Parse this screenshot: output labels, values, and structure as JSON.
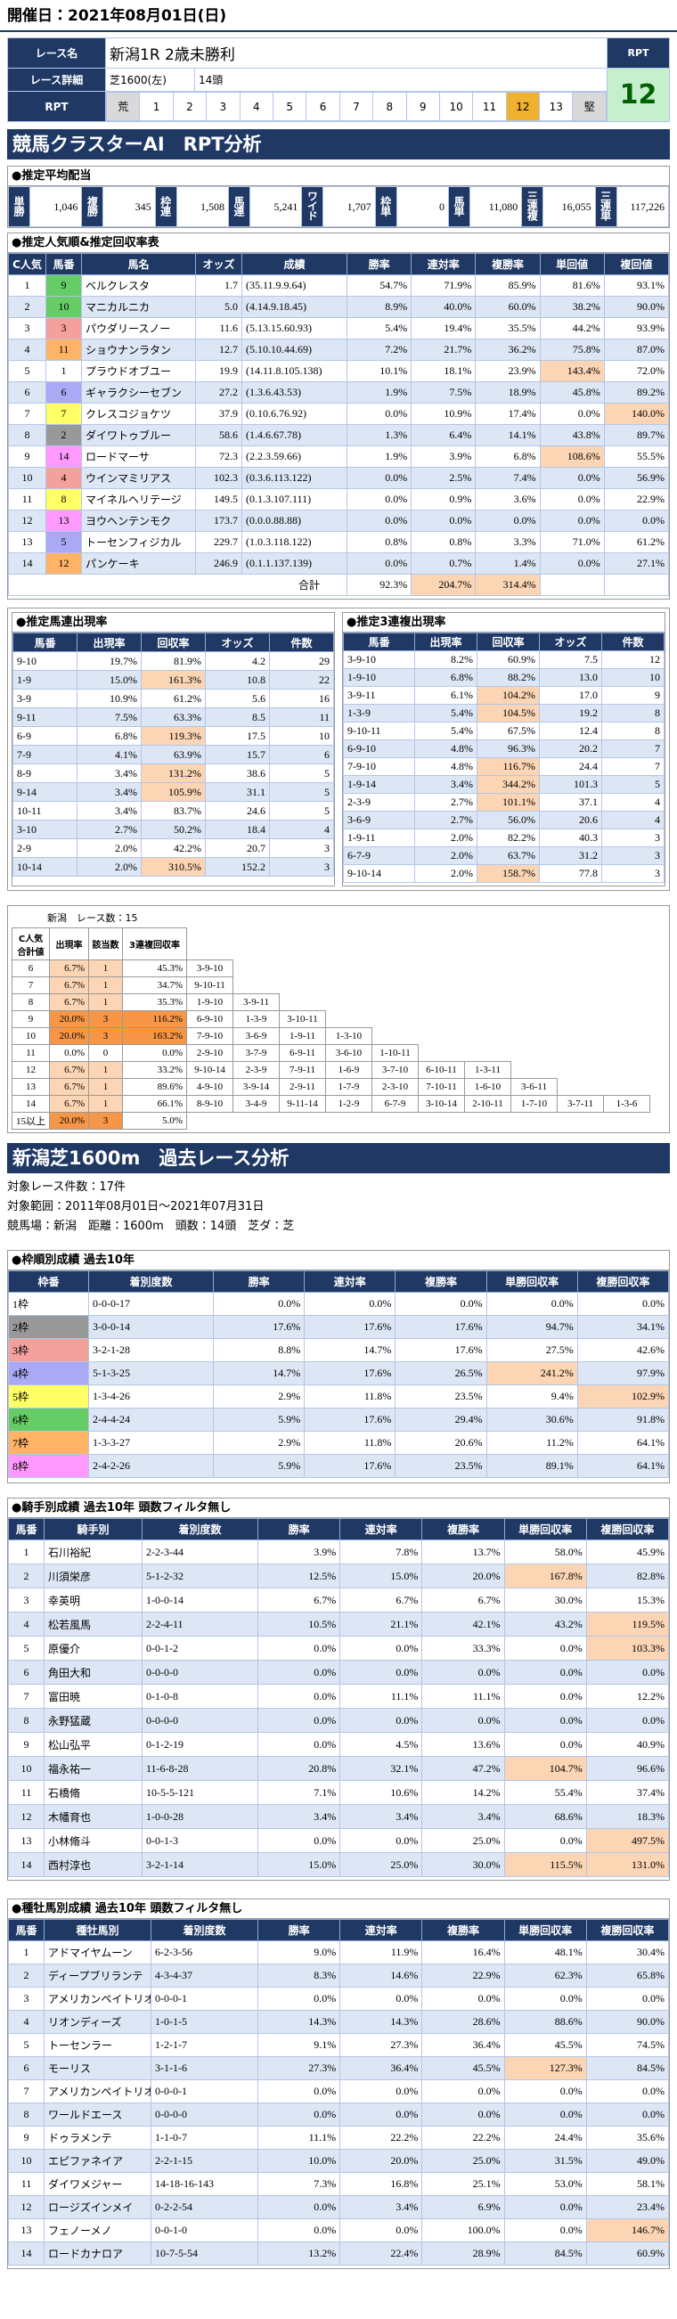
{
  "header": {
    "date": "開催日：2021年08月01日(日)"
  },
  "race": {
    "name_label": "レース名",
    "name": "新潟1R 2歳未勝利",
    "detail_label": "レース詳細",
    "course": "芝1600(左)",
    "runners": "14頭",
    "rpt_label": "RPT",
    "rpt_box_label": "RPT",
    "rpt_value": "12",
    "rpt_scale": [
      "荒",
      "1",
      "2",
      "3",
      "4",
      "5",
      "6",
      "7",
      "8",
      "9",
      "10",
      "11",
      "12",
      "13",
      "堅"
    ]
  },
  "analysis_title": "競馬クラスターAI　RPT分析",
  "payout": {
    "title": "●推定平均配当",
    "items": [
      {
        "label": "単勝",
        "value": "1,046"
      },
      {
        "label": "複勝",
        "value": "345"
      },
      {
        "label": "枠連",
        "value": "1,508"
      },
      {
        "label": "馬連",
        "value": "5,241"
      },
      {
        "label": "ワイド",
        "value": "1,707"
      },
      {
        "label": "枠単",
        "value": "0"
      },
      {
        "label": "馬単",
        "value": "11,080"
      },
      {
        "label": "三連複",
        "value": "16,055"
      },
      {
        "label": "三連単",
        "value": "117,226"
      }
    ]
  },
  "popularity": {
    "title": "●推定人気順&推定回収率表",
    "columns": [
      "C人気",
      "馬番",
      "馬名",
      "オッズ",
      "成績",
      "勝率",
      "連対率",
      "複勝率",
      "単回値",
      "複回値"
    ],
    "rows": [
      {
        "cells": [
          "1",
          "9",
          "ベルクレスタ",
          "1.7",
          "(35.11.9.9.64)",
          "54.7%",
          "71.9%",
          "85.9%",
          "81.6%",
          "93.1%"
        ],
        "color": "#66cc66"
      },
      {
        "cells": [
          "2",
          "10",
          "マニカルニカ",
          "5.0",
          "(4.14.9.18.45)",
          "8.9%",
          "40.0%",
          "60.0%",
          "38.2%",
          "90.0%"
        ],
        "color": "#66cc66"
      },
      {
        "cells": [
          "3",
          "3",
          "パウダリースノー",
          "11.6",
          "(5.13.15.60.93)",
          "5.4%",
          "19.4%",
          "35.5%",
          "44.2%",
          "93.9%"
        ],
        "color": "#f4a09c"
      },
      {
        "cells": [
          "4",
          "11",
          "ショウナンラタン",
          "12.7",
          "(5.10.10.44.69)",
          "7.2%",
          "21.7%",
          "36.2%",
          "75.8%",
          "87.0%"
        ],
        "color": "#ffb366"
      },
      {
        "cells": [
          "5",
          "1",
          "プラウドオブユー",
          "19.9",
          "(14.11.8.105.138)",
          "10.1%",
          "18.1%",
          "23.9%",
          "143.4%",
          "72.0%"
        ],
        "color": "#ffffff"
      },
      {
        "cells": [
          "6",
          "6",
          "ギャラクシーセブン",
          "27.2",
          "(1.3.6.43.53)",
          "1.9%",
          "7.5%",
          "18.9%",
          "45.8%",
          "89.2%"
        ],
        "color": "#a9a9f5"
      },
      {
        "cells": [
          "7",
          "7",
          "クレスコジョケツ",
          "37.9",
          "(0.10.6.76.92)",
          "0.0%",
          "10.9%",
          "17.4%",
          "0.0%",
          "140.0%"
        ],
        "color": "#ffff66"
      },
      {
        "cells": [
          "8",
          "2",
          "ダイワトゥブルー",
          "58.6",
          "(1.4.6.67.78)",
          "1.3%",
          "6.4%",
          "14.1%",
          "43.8%",
          "89.7%"
        ],
        "color": "#999999"
      },
      {
        "cells": [
          "9",
          "14",
          "ロードマーサ",
          "72.3",
          "(2.2.3.59.66)",
          "1.9%",
          "3.9%",
          "6.8%",
          "108.6%",
          "55.5%"
        ],
        "color": "#ff99ff"
      },
      {
        "cells": [
          "10",
          "4",
          "ウインマミリアス",
          "102.3",
          "(0.3.6.113.122)",
          "0.0%",
          "2.5%",
          "7.4%",
          "0.0%",
          "56.9%"
        ],
        "color": "#f4a09c"
      },
      {
        "cells": [
          "11",
          "8",
          "マイネルヘリテージ",
          "149.5",
          "(0.1.3.107.111)",
          "0.0%",
          "0.9%",
          "3.6%",
          "0.0%",
          "22.9%"
        ],
        "color": "#ffff66"
      },
      {
        "cells": [
          "12",
          "13",
          "ヨウヘンテンモク",
          "173.7",
          "(0.0.0.88.88)",
          "0.0%",
          "0.0%",
          "0.0%",
          "0.0%",
          "0.0%"
        ],
        "color": "#ff99ff"
      },
      {
        "cells": [
          "13",
          "5",
          "トーセンフィジカル",
          "229.7",
          "(1.0.3.118.122)",
          "0.8%",
          "0.8%",
          "3.3%",
          "71.0%",
          "61.2%"
        ],
        "color": "#a9a9f5"
      },
      {
        "cells": [
          "14",
          "12",
          "パンケーキ",
          "246.9",
          "(0.1.1.137.139)",
          "0.0%",
          "0.7%",
          "1.4%",
          "0.0%",
          "27.1%"
        ],
        "color": "#ffb366"
      }
    ],
    "total": {
      "label": "合計",
      "values": [
        "92.3%",
        "204.7%",
        "314.4%"
      ]
    }
  },
  "umaren": {
    "title": "●推定馬連出現率",
    "columns": [
      "馬番",
      "出現率",
      "回収率",
      "オッズ",
      "件数"
    ],
    "rows": [
      [
        "9-10",
        "19.7%",
        "81.9%",
        "4.2",
        "29"
      ],
      [
        "1-9",
        "15.0%",
        "161.3%",
        "10.8",
        "22"
      ],
      [
        "3-9",
        "10.9%",
        "61.2%",
        "5.6",
        "16"
      ],
      [
        "9-11",
        "7.5%",
        "63.3%",
        "8.5",
        "11"
      ],
      [
        "6-9",
        "6.8%",
        "119.3%",
        "17.5",
        "10"
      ],
      [
        "7-9",
        "4.1%",
        "63.9%",
        "15.7",
        "6"
      ],
      [
        "8-9",
        "3.4%",
        "131.2%",
        "38.6",
        "5"
      ],
      [
        "9-14",
        "3.4%",
        "105.9%",
        "31.1",
        "5"
      ],
      [
        "10-11",
        "3.4%",
        "83.7%",
        "24.6",
        "5"
      ],
      [
        "3-10",
        "2.7%",
        "50.2%",
        "18.4",
        "4"
      ],
      [
        "2-9",
        "2.0%",
        "42.2%",
        "20.7",
        "3"
      ],
      [
        "10-14",
        "2.0%",
        "310.5%",
        "152.2",
        "3"
      ]
    ]
  },
  "sanrenpuku": {
    "title": "●推定3連複出現率",
    "columns": [
      "馬番",
      "出現率",
      "回収率",
      "オッズ",
      "件数"
    ],
    "rows": [
      [
        "3-9-10",
        "8.2%",
        "60.9%",
        "7.5",
        "12"
      ],
      [
        "1-9-10",
        "6.8%",
        "88.2%",
        "13.0",
        "10"
      ],
      [
        "3-9-11",
        "6.1%",
        "104.2%",
        "17.0",
        "9"
      ],
      [
        "1-3-9",
        "5.4%",
        "104.5%",
        "19.2",
        "8"
      ],
      [
        "9-10-11",
        "5.4%",
        "67.5%",
        "12.4",
        "8"
      ],
      [
        "6-9-10",
        "4.8%",
        "96.3%",
        "20.2",
        "7"
      ],
      [
        "7-9-10",
        "4.8%",
        "116.7%",
        "24.4",
        "7"
      ],
      [
        "1-9-14",
        "3.4%",
        "344.2%",
        "101.3",
        "5"
      ],
      [
        "2-3-9",
        "2.7%",
        "101.1%",
        "37.1",
        "4"
      ],
      [
        "3-6-9",
        "2.7%",
        "56.0%",
        "20.6",
        "4"
      ],
      [
        "1-9-11",
        "2.0%",
        "82.2%",
        "40.3",
        "3"
      ],
      [
        "6-7-9",
        "2.0%",
        "63.7%",
        "31.2",
        "3"
      ],
      [
        "9-10-14",
        "2.0%",
        "158.7%",
        "77.8",
        "3"
      ]
    ]
  },
  "sum_table": {
    "caption": "新潟　レース数：15",
    "columns": [
      "C人気合計値",
      "出現率",
      "該当数",
      "3連複回収率"
    ],
    "rows": [
      {
        "cells": [
          "6",
          "6.7%",
          "1",
          "45.3%"
        ],
        "combos": [
          "3-9-10"
        ]
      },
      {
        "cells": [
          "7",
          "6.7%",
          "1",
          "34.7%"
        ],
        "combos": [
          "9-10-11"
        ]
      },
      {
        "cells": [
          "8",
          "6.7%",
          "1",
          "35.3%"
        ],
        "combos": [
          "1-9-10",
          "3-9-11"
        ]
      },
      {
        "cells": [
          "9",
          "20.0%",
          "3",
          "116.2%"
        ],
        "combos": [
          "6-9-10",
          "1-3-9",
          "3-10-11"
        ]
      },
      {
        "cells": [
          "10",
          "20.0%",
          "3",
          "163.2%"
        ],
        "combos": [
          "7-9-10",
          "3-6-9",
          "1-9-11",
          "1-3-10"
        ]
      },
      {
        "cells": [
          "11",
          "0.0%",
          "0",
          "0.0%"
        ],
        "combos": [
          "2-9-10",
          "3-7-9",
          "6-9-11",
          "3-6-10",
          "1-10-11"
        ]
      },
      {
        "cells": [
          "12",
          "6.7%",
          "1",
          "33.2%"
        ],
        "combos": [
          "9-10-14",
          "2-3-9",
          "7-9-11",
          "1-6-9",
          "3-7-10",
          "6-10-11",
          "1-3-11"
        ]
      },
      {
        "cells": [
          "13",
          "6.7%",
          "1",
          "89.6%"
        ],
        "combos": [
          "4-9-10",
          "3-9-14",
          "2-9-11",
          "1-7-9",
          "2-3-10",
          "7-10-11",
          "1-6-10",
          "3-6-11"
        ]
      },
      {
        "cells": [
          "14",
          "6.7%",
          "1",
          "66.1%"
        ],
        "combos": [
          "8-9-10",
          "3-4-9",
          "9-11-14",
          "1-2-9",
          "6-7-9",
          "3-10-14",
          "2-10-11",
          "1-7-10",
          "3-7-11",
          "1-3-6"
        ]
      },
      {
        "cells": [
          "15以上",
          "20.0%",
          "3",
          "5.0%"
        ],
        "combos": []
      }
    ]
  },
  "past": {
    "title": "新潟芝1600m　過去レース分析",
    "info": [
      "対象レース件数：17件",
      "対象範囲：2011年08月01日～2021年07月31日",
      "競馬場：新潟　距離：1600m　頭数：14頭　芝ダ：芝"
    ]
  },
  "waku": {
    "title": "●枠順別成績 過去10年",
    "columns": [
      "枠番",
      "着別度数",
      "勝率",
      "連対率",
      "複勝率",
      "単勝回収率",
      "複勝回収率"
    ],
    "rows": [
      {
        "cells": [
          "1枠",
          "0-0-0-17",
          "0.0%",
          "0.0%",
          "0.0%",
          "0.0%",
          "0.0%"
        ],
        "color": "#ffffff"
      },
      {
        "cells": [
          "2枠",
          "3-0-0-14",
          "17.6%",
          "17.6%",
          "17.6%",
          "94.7%",
          "34.1%"
        ],
        "color": "#999999"
      },
      {
        "cells": [
          "3枠",
          "3-2-1-28",
          "8.8%",
          "14.7%",
          "17.6%",
          "27.5%",
          "42.6%"
        ],
        "color": "#f4a09c"
      },
      {
        "cells": [
          "4枠",
          "5-1-3-25",
          "14.7%",
          "17.6%",
          "26.5%",
          "241.2%",
          "97.9%"
        ],
        "color": "#a9a9f5"
      },
      {
        "cells": [
          "5枠",
          "1-3-4-26",
          "2.9%",
          "11.8%",
          "23.5%",
          "9.4%",
          "102.9%"
        ],
        "color": "#ffff66"
      },
      {
        "cells": [
          "6枠",
          "2-4-4-24",
          "5.9%",
          "17.6%",
          "29.4%",
          "30.6%",
          "91.8%"
        ],
        "color": "#66cc66"
      },
      {
        "cells": [
          "7枠",
          "1-3-3-27",
          "2.9%",
          "11.8%",
          "20.6%",
          "11.2%",
          "64.1%"
        ],
        "color": "#ffb366"
      },
      {
        "cells": [
          "8枠",
          "2-4-2-26",
          "5.9%",
          "17.6%",
          "23.5%",
          "89.1%",
          "64.1%"
        ],
        "color": "#ff99ff"
      }
    ]
  },
  "jockey": {
    "title": "●騎手別成績 過去10年 頭数フィルタ無し",
    "columns": [
      "馬番",
      "騎手別",
      "着別度数",
      "勝率",
      "連対率",
      "複勝率",
      "単勝回収率",
      "複勝回収率"
    ],
    "rows": [
      [
        "1",
        "石川裕紀",
        "2-2-3-44",
        "3.9%",
        "7.8%",
        "13.7%",
        "58.0%",
        "45.9%"
      ],
      [
        "2",
        "川須栄彦",
        "5-1-2-32",
        "12.5%",
        "15.0%",
        "20.0%",
        "167.8%",
        "82.8%"
      ],
      [
        "3",
        "幸英明",
        "1-0-0-14",
        "6.7%",
        "6.7%",
        "6.7%",
        "30.0%",
        "15.3%"
      ],
      [
        "4",
        "松若風馬",
        "2-2-4-11",
        "10.5%",
        "21.1%",
        "42.1%",
        "43.2%",
        "119.5%"
      ],
      [
        "5",
        "原優介",
        "0-0-1-2",
        "0.0%",
        "0.0%",
        "33.3%",
        "0.0%",
        "103.3%"
      ],
      [
        "6",
        "角田大和",
        "0-0-0-0",
        "0.0%",
        "0.0%",
        "0.0%",
        "0.0%",
        "0.0%"
      ],
      [
        "7",
        "富田暁",
        "0-1-0-8",
        "0.0%",
        "11.1%",
        "11.1%",
        "0.0%",
        "12.2%"
      ],
      [
        "8",
        "永野猛蔵",
        "0-0-0-0",
        "0.0%",
        "0.0%",
        "0.0%",
        "0.0%",
        "0.0%"
      ],
      [
        "9",
        "松山弘平",
        "0-1-2-19",
        "0.0%",
        "4.5%",
        "13.6%",
        "0.0%",
        "40.9%"
      ],
      [
        "10",
        "福永祐一",
        "11-6-8-28",
        "20.8%",
        "32.1%",
        "47.2%",
        "104.7%",
        "96.6%"
      ],
      [
        "11",
        "石橋脩",
        "10-5-5-121",
        "7.1%",
        "10.6%",
        "14.2%",
        "55.4%",
        "37.4%"
      ],
      [
        "12",
        "木幡育也",
        "1-0-0-28",
        "3.4%",
        "3.4%",
        "3.4%",
        "68.6%",
        "18.3%"
      ],
      [
        "13",
        "小林脩斗",
        "0-0-1-3",
        "0.0%",
        "0.0%",
        "25.0%",
        "0.0%",
        "497.5%"
      ],
      [
        "14",
        "西村淳也",
        "3-2-1-14",
        "15.0%",
        "25.0%",
        "30.0%",
        "115.5%",
        "131.0%"
      ]
    ]
  },
  "sire": {
    "title": "●種牡馬別成績 過去10年 頭数フィルタ無し",
    "columns": [
      "馬番",
      "種牡馬別",
      "着別度数",
      "勝率",
      "連対率",
      "複勝率",
      "単勝回収率",
      "複勝回収率"
    ],
    "rows": [
      [
        "1",
        "アドマイヤムーン",
        "6-2-3-56",
        "9.0%",
        "11.9%",
        "16.4%",
        "48.1%",
        "30.4%"
      ],
      [
        "2",
        "ディープブリランテ",
        "4-3-4-37",
        "8.3%",
        "14.6%",
        "22.9%",
        "62.3%",
        "65.8%"
      ],
      [
        "3",
        "アメリカンペイトリオット",
        "0-0-0-1",
        "0.0%",
        "0.0%",
        "0.0%",
        "0.0%",
        "0.0%"
      ],
      [
        "4",
        "リオンディーズ",
        "1-0-1-5",
        "14.3%",
        "14.3%",
        "28.6%",
        "88.6%",
        "90.0%"
      ],
      [
        "5",
        "トーセンラー",
        "1-2-1-7",
        "9.1%",
        "27.3%",
        "36.4%",
        "45.5%",
        "74.5%"
      ],
      [
        "6",
        "モーリス",
        "3-1-1-6",
        "27.3%",
        "36.4%",
        "45.5%",
        "127.3%",
        "84.5%"
      ],
      [
        "7",
        "アメリカンペイトリオット",
        "0-0-0-1",
        "0.0%",
        "0.0%",
        "0.0%",
        "0.0%",
        "0.0%"
      ],
      [
        "8",
        "ワールドエース",
        "0-0-0-0",
        "0.0%",
        "0.0%",
        "0.0%",
        "0.0%",
        "0.0%"
      ],
      [
        "9",
        "ドゥラメンテ",
        "1-1-0-7",
        "11.1%",
        "22.2%",
        "22.2%",
        "24.4%",
        "35.6%"
      ],
      [
        "10",
        "エピファネイア",
        "2-2-1-15",
        "10.0%",
        "20.0%",
        "25.0%",
        "31.5%",
        "49.0%"
      ],
      [
        "11",
        "ダイワメジャー",
        "14-18-16-143",
        "7.3%",
        "16.8%",
        "25.1%",
        "53.0%",
        "58.1%"
      ],
      [
        "12",
        "ロージズインメイ",
        "0-2-2-54",
        "0.0%",
        "3.4%",
        "6.9%",
        "0.0%",
        "23.4%"
      ],
      [
        "13",
        "フェノーメノ",
        "0-0-1-0",
        "0.0%",
        "0.0%",
        "100.0%",
        "0.0%",
        "146.7%"
      ],
      [
        "14",
        "ロードカナロア",
        "10-7-5-54",
        "13.2%",
        "22.4%",
        "28.9%",
        "84.5%",
        "60.9%"
      ]
    ]
  }
}
